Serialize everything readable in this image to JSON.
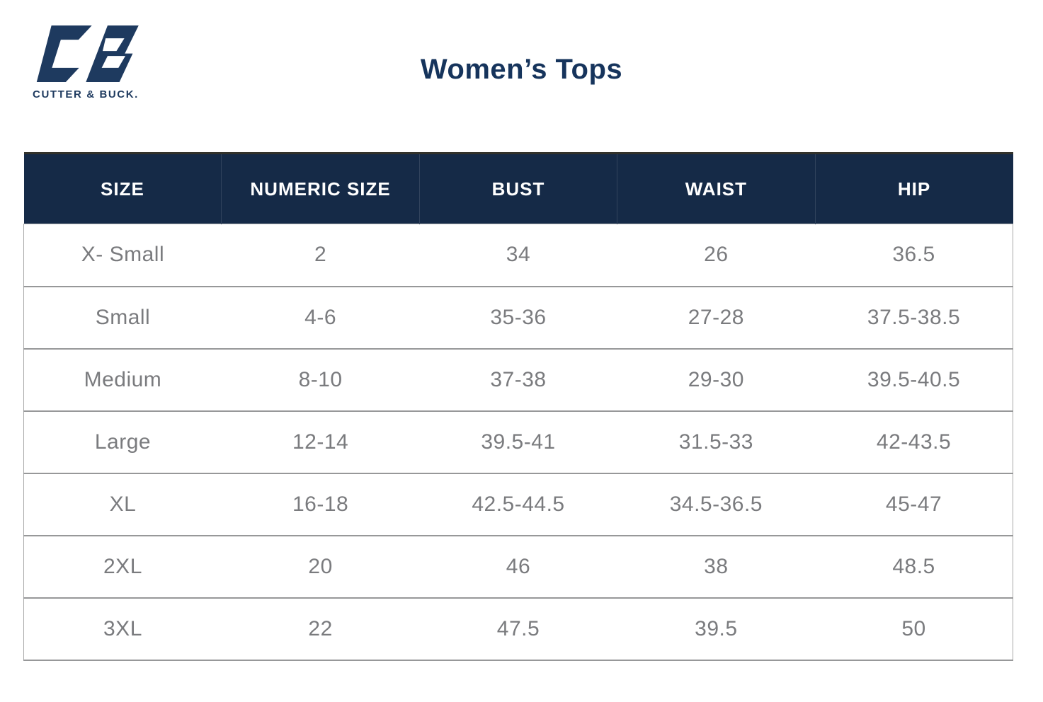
{
  "brand": {
    "wordmark": "CUTTER & BUCK.",
    "logo_icon": "cutter-and-buck-cb-monogram",
    "color": "#1E3A5F"
  },
  "header": {
    "title": "Women’s Tops",
    "title_color": "#16345C"
  },
  "table": {
    "columns": [
      "SIZE",
      "NUMERIC SIZE",
      "BUST",
      "WAIST",
      "HIP"
    ],
    "rows": [
      [
        "X- Small",
        "2",
        "34",
        "26",
        "36.5"
      ],
      [
        "Small",
        "4-6",
        "35-36",
        "27-28",
        "37.5-38.5"
      ],
      [
        "Medium",
        "8-10",
        "37-38",
        "29-30",
        "39.5-40.5"
      ],
      [
        "Large",
        "12-14",
        "39.5-41",
        "31.5-33",
        "42-43.5"
      ],
      [
        "XL",
        "16-18",
        "42.5-44.5",
        "34.5-36.5",
        "45-47"
      ],
      [
        "2XL",
        "20",
        "46",
        "38",
        "48.5"
      ],
      [
        "3XL",
        "22",
        "47.5",
        "39.5",
        "50"
      ]
    ],
    "header_bg": "#152A47",
    "header_text_color": "#FFFFFF",
    "body_text_color": "#7A7B7E",
    "divider_color": "#979899"
  }
}
